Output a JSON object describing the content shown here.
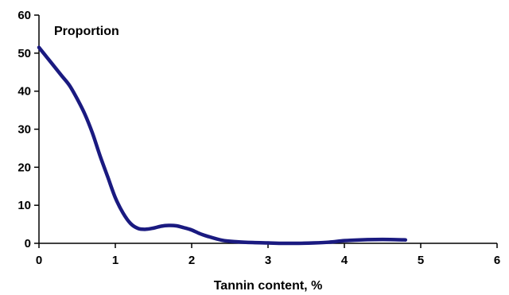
{
  "chart_data": {
    "type": "line",
    "title": "",
    "ylabel": "Proportion",
    "xlabel": "Tannin content, %",
    "xlim": [
      0,
      6
    ],
    "ylim": [
      0,
      60
    ],
    "xticks": [
      0,
      1,
      2,
      3,
      4,
      5,
      6
    ],
    "yticks": [
      0,
      10,
      20,
      30,
      40,
      50,
      60
    ],
    "grid": false,
    "series_color": "#1a1a80",
    "series": [
      {
        "x": [
          0,
          0.1,
          0.2,
          0.3,
          0.4,
          0.5,
          0.6,
          0.7,
          0.8,
          0.9,
          1.0,
          1.1,
          1.2,
          1.3,
          1.4,
          1.5,
          1.6,
          1.7,
          1.8,
          1.9,
          2.0,
          2.1,
          2.2,
          2.4,
          2.6,
          2.8,
          3.0,
          3.2,
          3.4,
          3.6,
          3.8,
          4.0,
          4.2,
          4.4,
          4.6,
          4.8
        ],
        "y": [
          51.5,
          49,
          46.5,
          44,
          41.5,
          38,
          34,
          29,
          23,
          17.5,
          12,
          8,
          5.2,
          3.9,
          3.7,
          4.0,
          4.5,
          4.7,
          4.6,
          4.1,
          3.5,
          2.6,
          1.9,
          0.8,
          0.4,
          0.2,
          0.1,
          0.0,
          0.0,
          0.1,
          0.3,
          0.7,
          0.9,
          1.0,
          1.0,
          0.9
        ]
      }
    ]
  }
}
